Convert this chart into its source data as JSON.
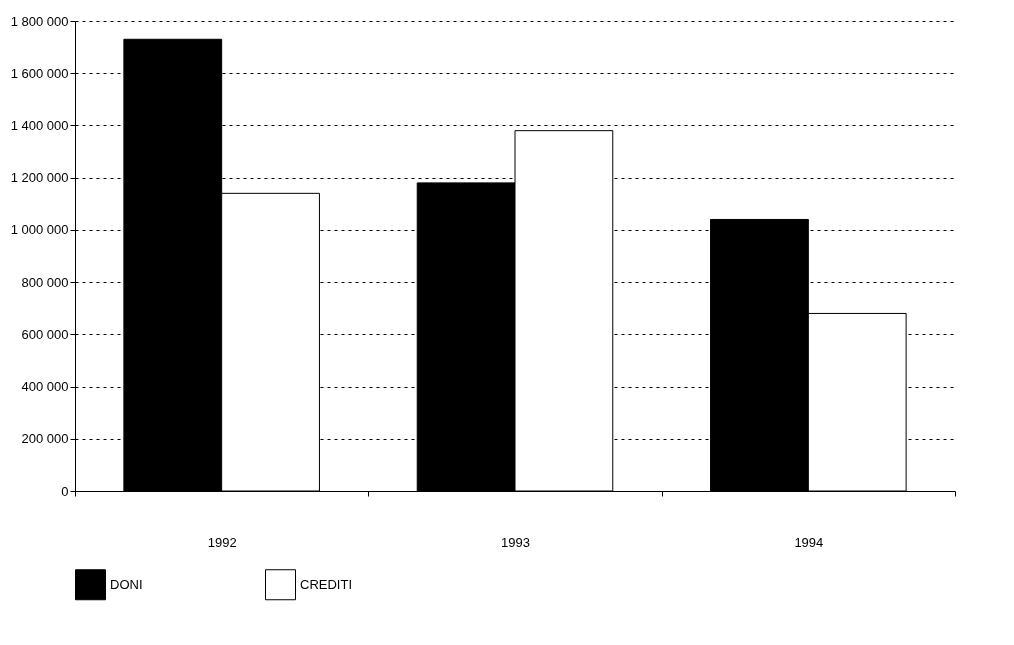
{
  "chart_data": {
    "type": "bar",
    "categories": [
      "1992",
      "1993",
      "1994"
    ],
    "series": [
      {
        "name": "DONI",
        "color": "#000000",
        "values": [
          1730000,
          1180000,
          1040000
        ]
      },
      {
        "name": "CREDITI",
        "color": "#ffffff",
        "values": [
          1140000,
          1380000,
          680000
        ]
      }
    ],
    "ylim": [
      0,
      1800000
    ],
    "yticks": [
      0,
      {
        "value": 200000,
        "label": "200 000"
      },
      {
        "value": 400000,
        "label": "400 000"
      },
      {
        "value": 600000,
        "label": "600 000"
      },
      {
        "value": 800000,
        "label": "800 000"
      },
      {
        "value": 1000000,
        "label": "1 000 000"
      },
      {
        "value": 1200000,
        "label": "1 200 000"
      },
      {
        "value": 1400000,
        "label": "1 400 000"
      },
      {
        "value": 1600000,
        "label": "1 600 000"
      },
      {
        "value": 1800000,
        "label": "1 800 000"
      }
    ],
    "grid": "y",
    "legend": "bottom"
  }
}
